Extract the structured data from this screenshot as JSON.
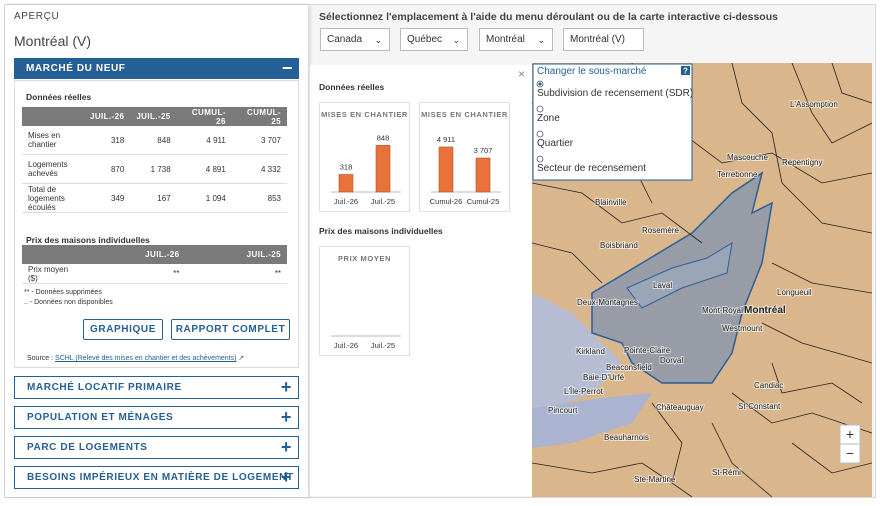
{
  "sidebar": {
    "title": "APERÇU",
    "location": "Montréal (V)",
    "open_section": {
      "title": "MARCHÉ DU NEUF",
      "subtitle": "Données réelles",
      "table": {
        "headers": [
          "JUIL.-26",
          "JUIL.-25",
          "CUMUL-26",
          "CUMUL-25"
        ],
        "rows": [
          [
            "Mises en chantier",
            "318",
            "848",
            "4 911",
            "3 707"
          ],
          [
            "Logements achevés",
            "870",
            "1 738",
            "4 891",
            "4 332"
          ],
          [
            "Total de logements écoulés",
            "349",
            "167",
            "1 094",
            "853"
          ]
        ]
      },
      "price_title": "Prix des maisons individuelles",
      "price_table": {
        "headers": [
          "JUIL.-26",
          "JUIL.-25"
        ],
        "rows": [
          [
            "Prix moyen ($)",
            "**",
            "**"
          ]
        ]
      },
      "notes": [
        "** - Données supprimées",
        ".. - Données non disponibles"
      ],
      "buttons": [
        "GRAPHIQUE",
        "RAPPORT COMPLET"
      ],
      "source_label": "Source :",
      "source_link": "SCHL (Relevé des mises en chantier et des achèvements)"
    },
    "closed_sections": [
      "MARCHÉ LOCATIF PRIMAIRE",
      "POPULATION ET MÉNAGES",
      "PARC DE LOGEMENTS",
      "BESOINS IMPÉRIEUX EN MATIÈRE DE LOGEMENT"
    ]
  },
  "main": {
    "instruction": "Sélectionnez l'emplacement à l'aide du menu déroulant ou de la carte interactive ci-dessous",
    "dropdowns": [
      "Canada",
      "Québec",
      "Montréal",
      "Montréal (V)"
    ],
    "heading_actual": "Données réelles",
    "heading_price": "Prix des maisons individuelles"
  },
  "chart_data": [
    {
      "type": "bar",
      "title": "MISES EN CHANTIER",
      "categories": [
        "Juil.-26",
        "Juil.-25"
      ],
      "values": [
        318,
        848
      ],
      "color": "#e8733a",
      "ylim": [
        0,
        1000
      ]
    },
    {
      "type": "bar",
      "title": "MISES EN CHANTIER",
      "categories": [
        "Cumul-26",
        "Cumul-25"
      ],
      "values": [
        4911,
        3707
      ],
      "value_labels": [
        "4 911",
        "3 707"
      ],
      "color": "#e8733a",
      "ylim": [
        0,
        6000
      ]
    },
    {
      "type": "bar",
      "title": "PRIX MOYEN",
      "categories": [
        "Juil.-26",
        "Juil.-25"
      ],
      "values": [
        null,
        null
      ],
      "color": "#e8733a"
    }
  ],
  "map": {
    "popup_title": "Changer le sous-marché",
    "help": "?",
    "options": [
      "Subdivision de recensement (SDR)",
      "Zone",
      "Quartier",
      "Secteur de recensement"
    ],
    "places": [
      "L'Assomption",
      "Mascouche",
      "Repentigny",
      "Terrebonne",
      "Blainville",
      "Rosemère",
      "Boisbriand",
      "Laval",
      "Deux-Montagnes",
      "Mont-Royal",
      "Montréal",
      "Westmount",
      "Longueuil",
      "Kirkland",
      "Pointe-Claire",
      "Beaconsfield",
      "Dorval",
      "Baie-D'Urfé",
      "L'Île-Perrot",
      "Pincourt",
      "Châteauguay",
      "Candiac",
      "St-Constant",
      "Beauharnois",
      "St-Rémi",
      "Ste-Martine"
    ],
    "zoom_in": "+",
    "zoom_out": "−"
  }
}
